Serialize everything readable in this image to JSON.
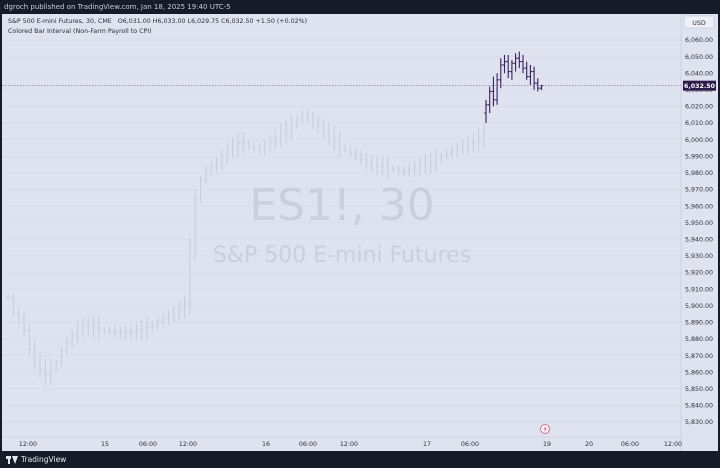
{
  "header": {
    "published_by": "dgroch published on TradingView.com, Jan 18, 2025 19:40 UTC-5"
  },
  "legend": {
    "symbol_line": "S&P 500 E-mini Futures, 30, CME",
    "ohlc": "O6,031.00  H6,033.00  L6,029.75  C6,032.50  +1.50 (+0.02%)",
    "indicator": "Colored Bar Interval (Non-Farm Payroll to CPI)"
  },
  "currency": "USD",
  "watermark": {
    "ticker": "ES1!, 30",
    "name": "S&P 500 E-mini Futures"
  },
  "last_price_label": "6,032.50",
  "footer": {
    "brand": "TradingView"
  },
  "colors": {
    "normal_bar": "#c9cdd9",
    "highlight_bar": "#3b1f5e",
    "price_line": "#7b5ea7",
    "price_tag": "#2c1a4a",
    "background": "#dfe3ef",
    "frame": "#161b27"
  },
  "chart_data": {
    "type": "bar",
    "y_axis_ticks": [
      "6,060.00",
      "6,050.00",
      "6,040.00",
      "6,030.00",
      "6,020.00",
      "6,010.00",
      "6,000.00",
      "5,990.00",
      "5,980.00",
      "5,970.00",
      "5,960.00",
      "5,950.00",
      "5,940.00",
      "5,930.00",
      "5,920.00",
      "5,910.00",
      "5,900.00",
      "5,890.00",
      "5,880.00",
      "5,870.00",
      "5,860.00",
      "5,850.00",
      "5,840.00",
      "5,830.00"
    ],
    "x_axis_ticks": [
      "12:00",
      "15",
      "06:00",
      "12:00",
      "16",
      "06:00",
      "12:00",
      "17",
      "06:00",
      "19",
      "20",
      "06:00",
      "12:00"
    ],
    "ylim": [
      5826,
      6066
    ],
    "last_price": 6032.5,
    "price_series": [
      5905,
      5896,
      5892,
      5885,
      5874,
      5866,
      5862,
      5858,
      5862,
      5866,
      5873,
      5878,
      5882,
      5886,
      5888,
      5888,
      5887,
      5886,
      5885,
      5885,
      5884,
      5884,
      5884,
      5884,
      5885,
      5886,
      5887,
      5888,
      5890,
      5892,
      5894,
      5896,
      5898,
      5901,
      5935,
      5964,
      5976,
      5982,
      5984,
      5986,
      5990,
      5994,
      5996,
      5998,
      5998,
      5996,
      5995,
      5994,
      5996,
      5999,
      6001,
      6004,
      6006,
      6008,
      6012,
      6015,
      6013,
      6010,
      6008,
      6005,
      6002,
      5999,
      5996,
      5994,
      5992,
      5990,
      5988,
      5986,
      5985,
      5984,
      5984,
      5983,
      5982,
      5981,
      5981,
      5982,
      5983,
      5985,
      5986,
      5987,
      5988,
      5990,
      5992,
      5993,
      5995,
      5996,
      5998,
      5999,
      6001,
      6003
    ],
    "highlight_bars": [
      {
        "o": 6016,
        "h": 6024,
        "l": 6010,
        "c": 6021
      },
      {
        "o": 6021,
        "h": 6032,
        "l": 6016,
        "c": 6029
      },
      {
        "o": 6029,
        "h": 6038,
        "l": 6020,
        "c": 6024
      },
      {
        "o": 6024,
        "h": 6040,
        "l": 6021,
        "c": 6036
      },
      {
        "o": 6036,
        "h": 6049,
        "l": 6031,
        "c": 6045
      },
      {
        "o": 6045,
        "h": 6051,
        "l": 6040,
        "c": 6047
      },
      {
        "o": 6047,
        "h": 6051,
        "l": 6037,
        "c": 6041
      },
      {
        "o": 6041,
        "h": 6048,
        "l": 6036,
        "c": 6046
      },
      {
        "o": 6046,
        "h": 6052,
        "l": 6041,
        "c": 6049
      },
      {
        "o": 6049,
        "h": 6053,
        "l": 6043,
        "c": 6047
      },
      {
        "o": 6047,
        "h": 6051,
        "l": 6040,
        "c": 6043
      },
      {
        "o": 6043,
        "h": 6047,
        "l": 6036,
        "c": 6038
      },
      {
        "o": 6038,
        "h": 6045,
        "l": 6033,
        "c": 6041
      },
      {
        "o": 6041,
        "h": 6044,
        "l": 6030,
        "c": 6034
      },
      {
        "o": 6034,
        "h": 6037,
        "l": 6029,
        "c": 6031
      },
      {
        "o": 6031,
        "h": 6033,
        "l": 6029.75,
        "c": 6032.5
      }
    ]
  }
}
